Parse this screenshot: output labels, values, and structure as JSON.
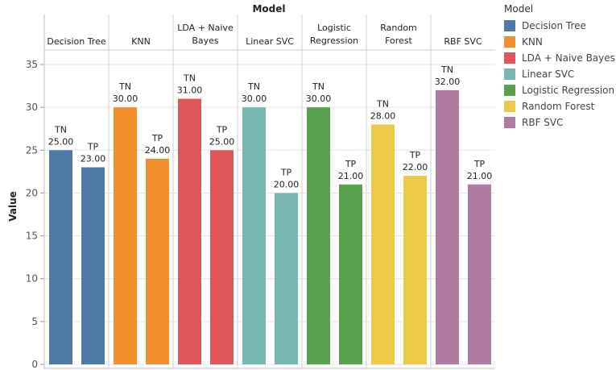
{
  "chart_data": {
    "type": "bar",
    "title": "Model",
    "ylabel": "Value",
    "ylim": [
      0,
      35
    ],
    "yticks": [
      0,
      5,
      10,
      15,
      20,
      25,
      30,
      35
    ],
    "grid": true,
    "bar_categories": [
      "TN",
      "TP"
    ],
    "panels": [
      {
        "name": "Decision Tree",
        "title_lines": [
          "Decision Tree"
        ],
        "values": [
          25,
          23
        ],
        "color": "#4e79a7"
      },
      {
        "name": "KNN",
        "title_lines": [
          "KNN"
        ],
        "values": [
          30,
          24
        ],
        "color": "#f28e2b"
      },
      {
        "name": "LDA + Naive Bayes",
        "title_lines": [
          "LDA + Naive",
          "Bayes"
        ],
        "values": [
          31,
          25
        ],
        "color": "#e15759"
      },
      {
        "name": "Linear SVC",
        "title_lines": [
          "Linear SVC"
        ],
        "values": [
          30,
          20
        ],
        "color": "#76b7b2"
      },
      {
        "name": "Logistic Regression",
        "title_lines": [
          "Logistic",
          "Regression"
        ],
        "values": [
          30,
          21
        ],
        "color": "#59a14f"
      },
      {
        "name": "Random Forest",
        "title_lines": [
          "Random",
          "Forest"
        ],
        "values": [
          28,
          22
        ],
        "color": "#edc948"
      },
      {
        "name": "RBF SVC",
        "title_lines": [
          "RBF SVC"
        ],
        "values": [
          32,
          21
        ],
        "color": "#b07aa1"
      }
    ],
    "legend": {
      "title": "Model",
      "position": "right",
      "items": [
        "Decision Tree",
        "KNN",
        "LDA + Naive Bayes",
        "Linear SVC",
        "Logistic Regression",
        "Random Forest",
        "RBF SVC"
      ]
    }
  }
}
